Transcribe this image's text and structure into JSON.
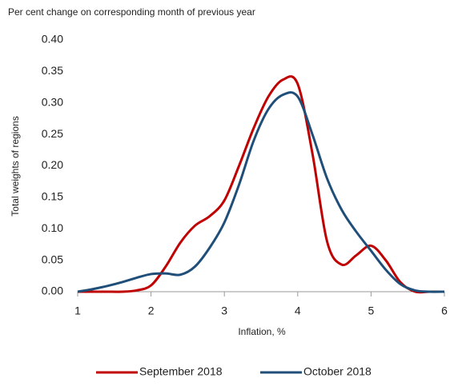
{
  "chart_data": {
    "type": "line",
    "subtitle": "Per cent change on corresponding month of previous year",
    "y_label": "Total weights of regions",
    "x_label": "Inflation, %",
    "x": [
      1,
      1.2,
      1.4,
      1.6,
      1.8,
      2,
      2.2,
      2.4,
      2.6,
      2.8,
      3,
      3.2,
      3.4,
      3.6,
      3.8,
      4,
      4.2,
      4.4,
      4.6,
      4.8,
      5,
      5.2,
      5.4,
      5.6,
      5.8,
      6
    ],
    "series": [
      {
        "name": "September 2018",
        "color": "#c00000",
        "values": [
          0,
          0,
          0,
          0,
          0.002,
          0.01,
          0.04,
          0.078,
          0.105,
          0.12,
          0.145,
          0.2,
          0.26,
          0.31,
          0.337,
          0.33,
          0.22,
          0.08,
          0.043,
          0.058,
          0.073,
          0.05,
          0.015,
          0,
          0,
          0
        ]
      },
      {
        "name": "October 2018",
        "color": "#1f4e79",
        "values": [
          0,
          0.004,
          0.009,
          0.015,
          0.022,
          0.028,
          0.029,
          0.027,
          0.04,
          0.07,
          0.11,
          0.17,
          0.24,
          0.29,
          0.313,
          0.31,
          0.25,
          0.18,
          0.13,
          0.095,
          0.065,
          0.035,
          0.012,
          0.002,
          0,
          0
        ]
      }
    ],
    "xlim": [
      1,
      6
    ],
    "xticks": [
      1,
      2,
      3,
      4,
      5,
      6
    ],
    "ylim": [
      0,
      0.4
    ],
    "yticks": [
      {
        "value": 0,
        "label": "0.00"
      },
      {
        "value": 0.05,
        "label": "0.05"
      },
      {
        "value": 0.1,
        "label": "0.10"
      },
      {
        "value": 0.15,
        "label": "0.15"
      },
      {
        "value": 0.2,
        "label": "0.20"
      },
      {
        "value": 0.25,
        "label": "0.25"
      },
      {
        "value": 0.3,
        "label": "0.30"
      },
      {
        "value": 0.35,
        "label": "0.35"
      },
      {
        "value": 0.4,
        "label": "0.40"
      }
    ],
    "legend": "bottom"
  }
}
